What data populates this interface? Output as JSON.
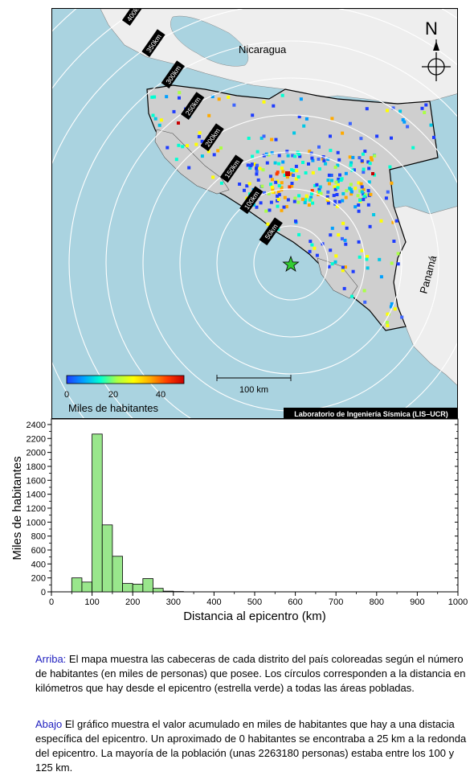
{
  "map": {
    "country_labels": [
      "Nicaragua",
      "Panamá"
    ],
    "north_label": "N",
    "distance_rings_km": [
      50,
      100,
      150,
      200,
      250,
      300,
      350,
      400,
      450
    ],
    "distance_ring_labels": [
      "50km",
      "100km",
      "150km",
      "200km",
      "250km",
      "300km",
      "350km",
      "400km",
      "450km"
    ],
    "scale_bar_label": "100 km",
    "credit": "Laboratorio de Ingeniería Sísmica (LIS–UCR)",
    "colorbar": {
      "title": "Miles de habitantes",
      "ticks": [
        "0",
        "20",
        "40"
      ],
      "range": [
        0,
        50
      ],
      "colors": [
        "#1e3cff",
        "#00a0ff",
        "#00ffd2",
        "#aaff46",
        "#ffff00",
        "#ffaa00",
        "#ff3c00",
        "#c80000"
      ]
    },
    "colors": {
      "ocean": "#aad3e0",
      "land_costa_rica": "#cfcfcf",
      "land_neighbors": "#eeeeee",
      "epicenter": "#33cc33"
    }
  },
  "chart_data": {
    "type": "bar",
    "xlabel": "Distancia al epicentro (km)",
    "ylabel": "Miles de habitantes",
    "xlim": [
      0,
      1000
    ],
    "ylim": [
      0,
      2500
    ],
    "xticks": [
      0,
      100,
      200,
      300,
      400,
      500,
      600,
      700,
      800,
      900,
      1000
    ],
    "yticks": [
      0,
      200,
      400,
      600,
      800,
      1000,
      1200,
      1400,
      1600,
      1800,
      2000,
      2200,
      2400
    ],
    "bin_width_km": 25,
    "bins_start_km": [
      50,
      75,
      100,
      125,
      150,
      175,
      200,
      225,
      250,
      275,
      300
    ],
    "values": [
      200,
      140,
      2263,
      960,
      510,
      120,
      110,
      190,
      50,
      10,
      5
    ],
    "bar_color": "#99e68c"
  },
  "captions": {
    "top_lead": "Arriba:",
    "top_text": " El mapa muestra las cabeceras de cada distrito del país coloreadas según el número de habitantes (en miles de personas) que posee.  Los círculos corresponden a la distancia en kilómetros que hay desde el epicentro (estrella verde) a todas las áreas pobladas.",
    "bottom_lead": "Abajo",
    "bottom_text": " El gráfico muestra el valor acumulado en miles de habitantes que hay a una distacia específica del epicentro.  Un aproximado de 0 habitantes se encontraba a 25 km a la redonda del epicentro.  La mayoría de la población (unas 2263180 personas) estaba entre los 100 y 125 km."
  }
}
